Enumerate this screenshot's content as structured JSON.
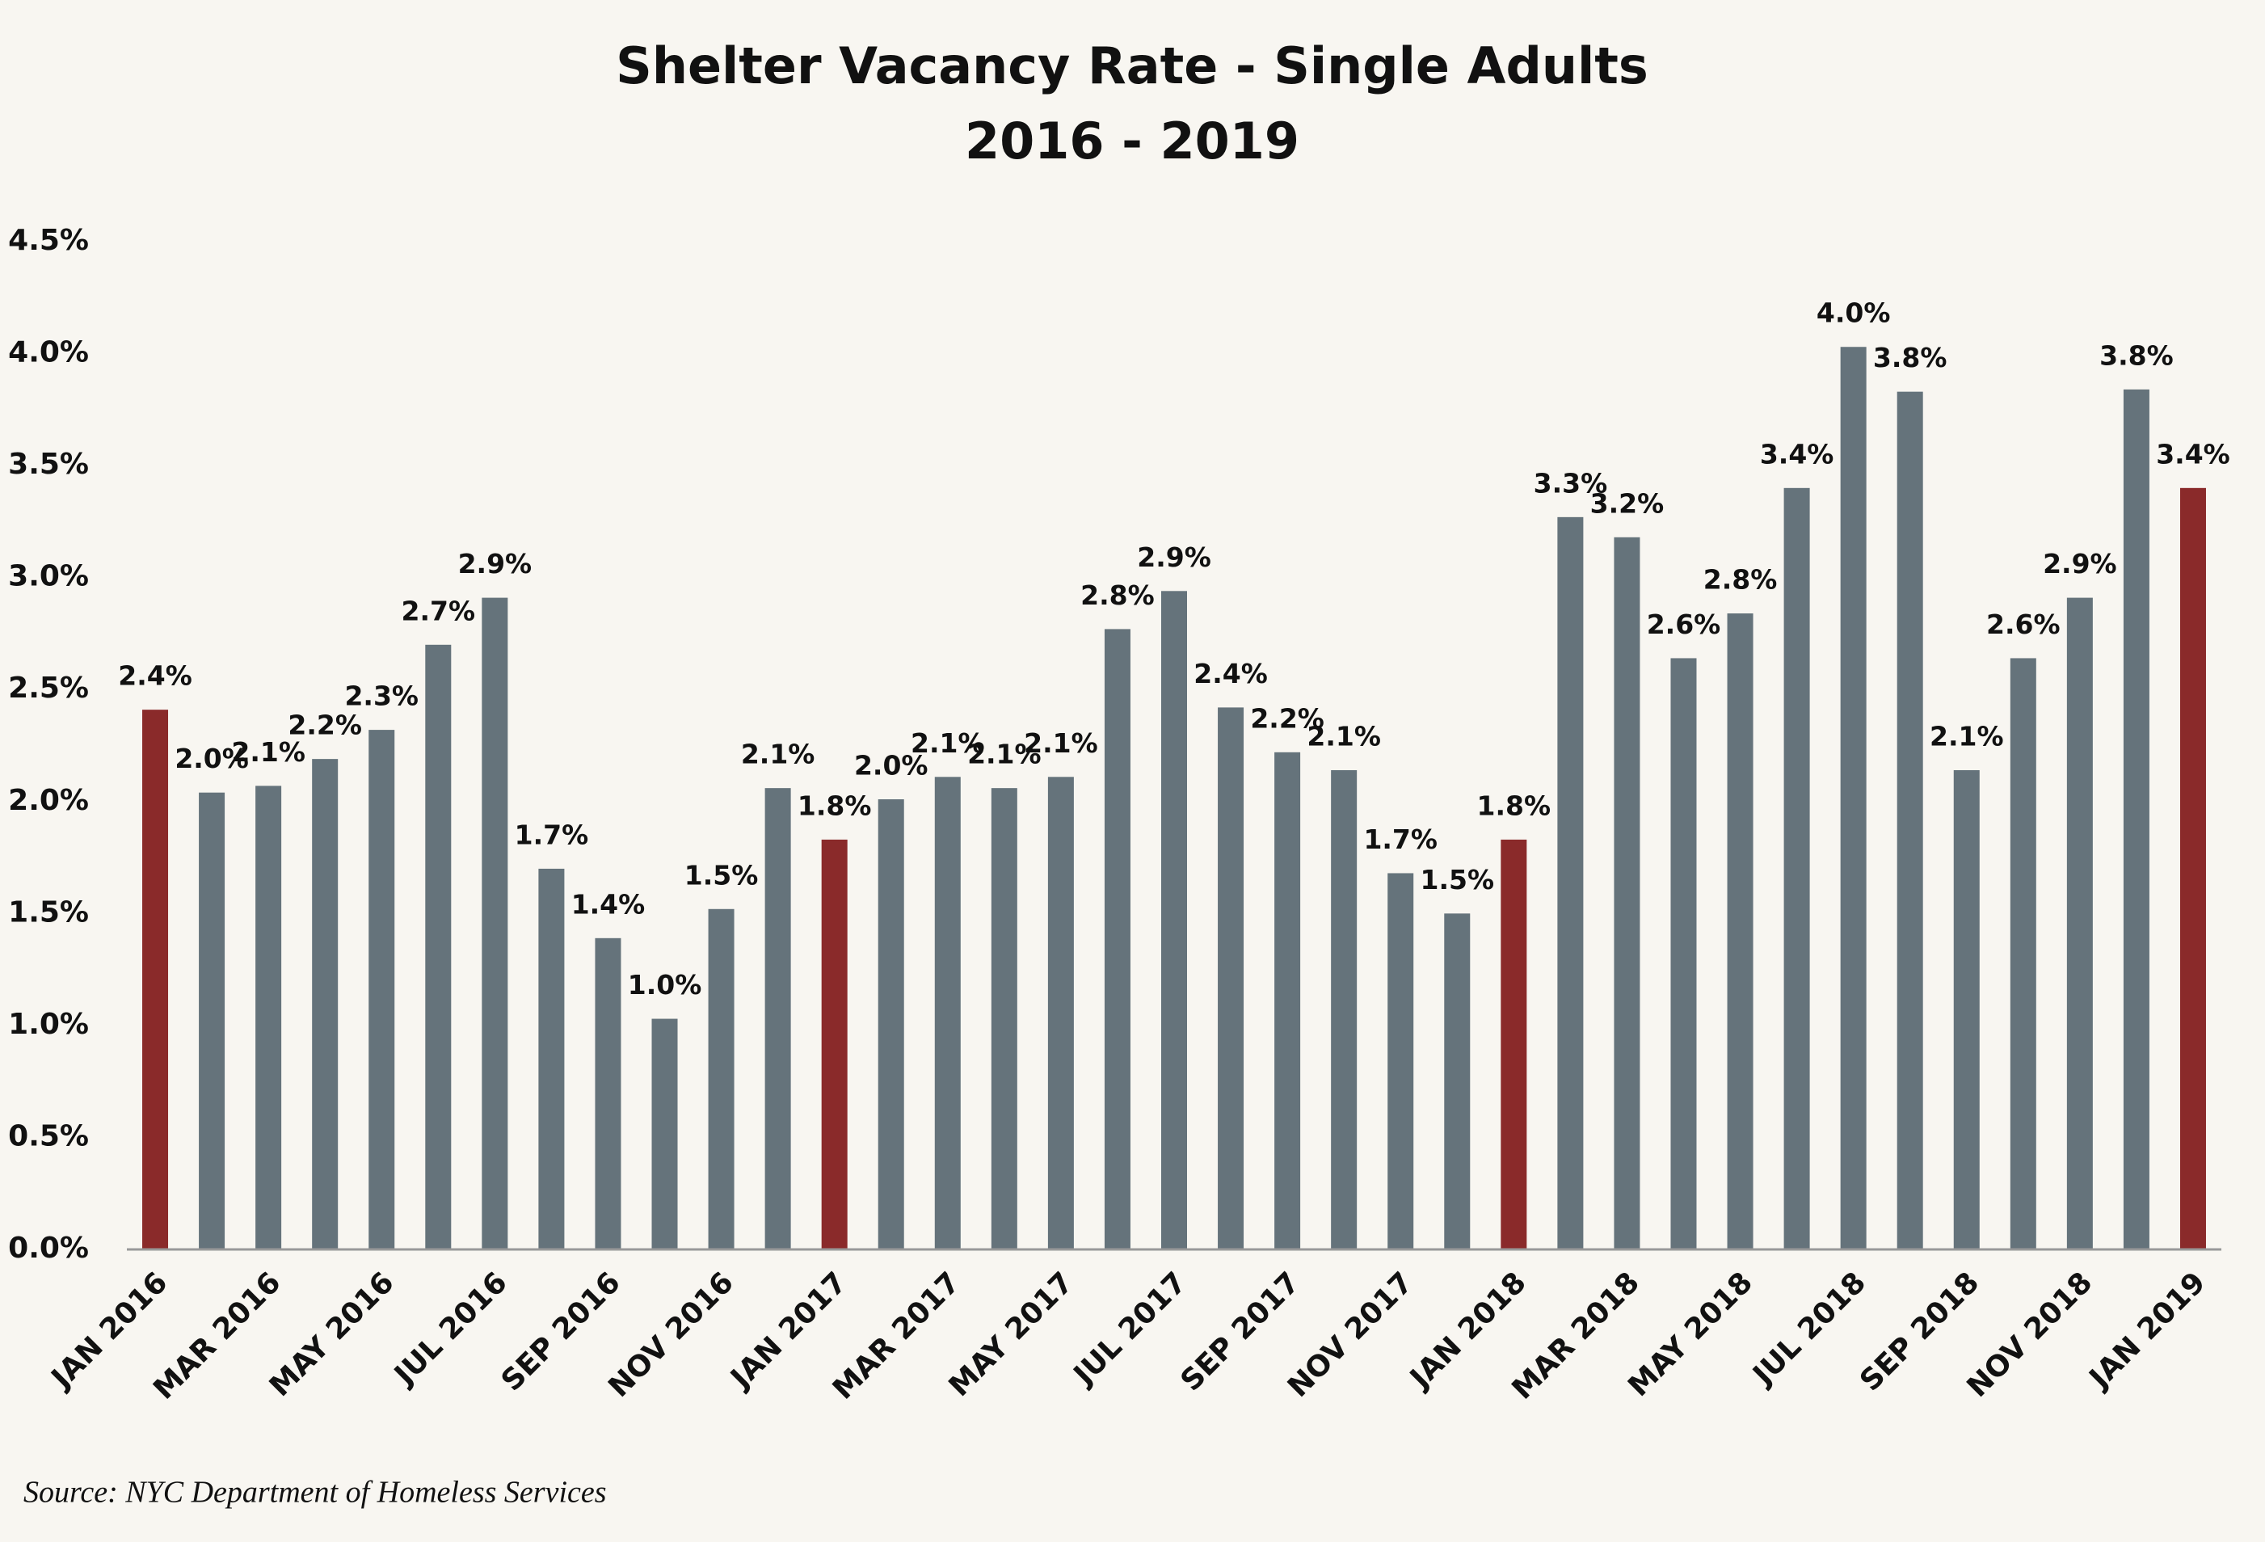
{
  "chart_data": {
    "type": "bar",
    "title": "Shelter Vacancy Rate - Single Adults",
    "subtitle": "2016 - 2019",
    "source": "Source: NYC Department of Homeless Services",
    "categories": [
      "JAN 2016",
      null,
      "MAR 2016",
      null,
      "MAY 2016",
      null,
      "JUL 2016",
      null,
      "SEP 2016",
      null,
      "NOV 2016",
      null,
      "JAN 2017",
      null,
      "MAR 2017",
      null,
      "MAY 2017",
      null,
      "JUL 2017",
      null,
      "SEP 2017",
      null,
      "NOV 2017",
      null,
      "JAN 2018",
      null,
      "MAR 2018",
      null,
      "MAY 2018",
      null,
      "JUL 2018",
      null,
      "SEP 2018",
      null,
      "NOV 2018",
      null,
      "JAN 2019"
    ],
    "values": [
      2.41,
      2.04,
      2.07,
      2.19,
      2.32,
      2.7,
      2.91,
      1.7,
      1.39,
      1.03,
      1.52,
      2.06,
      1.83,
      2.01,
      2.11,
      2.06,
      2.11,
      2.77,
      2.94,
      2.42,
      2.22,
      2.14,
      1.68,
      1.5,
      1.83,
      3.27,
      3.18,
      2.64,
      2.84,
      3.4,
      4.03,
      3.83,
      2.14,
      2.64,
      2.91,
      3.84,
      3.4
    ],
    "value_labels": [
      "2.4%",
      "2.0%",
      "2.1%",
      "2.2%",
      "2.3%",
      "2.7%",
      "2.9%",
      "1.7%",
      "1.4%",
      "1.0%",
      "1.5%",
      "2.1%",
      "1.8%",
      "2.0%",
      "2.1%",
      "2.1%",
      "2.1%",
      "2.8%",
      "2.9%",
      "2.4%",
      "2.2%",
      "2.1%",
      "1.7%",
      "1.5%",
      "1.8%",
      "3.3%",
      "3.2%",
      "2.6%",
      "2.8%",
      "3.4%",
      "4.0%",
      "3.8%",
      "2.1%",
      "2.6%",
      "2.9%",
      "3.8%",
      "3.4%"
    ],
    "colors": [
      "#8a2a2a",
      "#65737b",
      "#65737b",
      "#65737b",
      "#65737b",
      "#65737b",
      "#65737b",
      "#65737b",
      "#65737b",
      "#65737b",
      "#65737b",
      "#65737b",
      "#8a2a2a",
      "#65737b",
      "#65737b",
      "#65737b",
      "#65737b",
      "#65737b",
      "#65737b",
      "#65737b",
      "#65737b",
      "#65737b",
      "#65737b",
      "#65737b",
      "#8a2a2a",
      "#65737b",
      "#65737b",
      "#65737b",
      "#65737b",
      "#65737b",
      "#65737b",
      "#65737b",
      "#65737b",
      "#65737b",
      "#65737b",
      "#65737b",
      "#8a2a2a"
    ],
    "ylim": [
      0,
      4.5
    ],
    "yticks": [
      {
        "value": 0,
        "label": "0.0%"
      },
      {
        "value": 0.5,
        "label": "0.5%"
      },
      {
        "value": 1,
        "label": "1.0%"
      },
      {
        "value": 1.5,
        "label": "1.5%"
      },
      {
        "value": 2,
        "label": "2.0%"
      },
      {
        "value": 2.5,
        "label": "2.5%"
      },
      {
        "value": 3,
        "label": "3.0%"
      },
      {
        "value": 3.5,
        "label": "3.5%"
      },
      {
        "value": 4,
        "label": "4.0%"
      },
      {
        "value": 4.5,
        "label": "4.5%"
      }
    ],
    "grid": false
  }
}
